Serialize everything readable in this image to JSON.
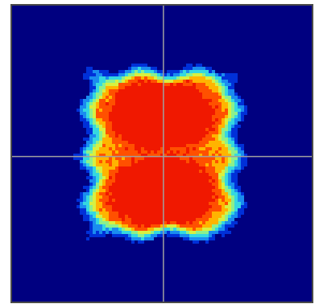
{
  "chart_data": {
    "type": "heatmap",
    "title": "",
    "xlabel": "",
    "ylabel": "",
    "grid": false,
    "crosshair": true,
    "colormap": [
      "#000080",
      "#0030d8",
      "#1a8cf0",
      "#34d8e0",
      "#8cf08c",
      "#d8f040",
      "#ffb400",
      "#ff5000",
      "#f01800"
    ],
    "crosshair_color": "#a0a0a0",
    "background_color": "#000080",
    "blobs": [
      {
        "name": "upper-lobe",
        "cx": 0.5,
        "cy": 0.37,
        "sx": 0.16,
        "sy": 0.11,
        "peak": 1.0
      },
      {
        "name": "lower-lobe",
        "cx": 0.5,
        "cy": 0.63,
        "sx": 0.16,
        "sy": 0.11,
        "peak": 1.0
      },
      {
        "name": "center-glow",
        "cx": 0.5,
        "cy": 0.5,
        "sx": 0.24,
        "sy": 0.2,
        "peak": 0.55
      }
    ]
  }
}
